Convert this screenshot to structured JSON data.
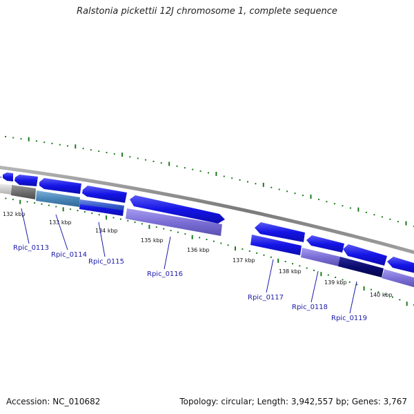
{
  "header": {
    "title": "Ralstonia pickettii 12J chromosome 1, complete sequence"
  },
  "footer": {
    "accession": "Accession: NC_010682",
    "summary": "Topology: circular; Length: 3,942,557 bp; Genes: 3,767"
  },
  "ticks": [
    {
      "label": "132 kbp"
    },
    {
      "label": "133 kbp"
    },
    {
      "label": "134 kbp"
    },
    {
      "label": "135 kbp"
    },
    {
      "label": "136 kbp"
    },
    {
      "label": "137 kbp"
    },
    {
      "label": "138 kbp"
    },
    {
      "label": "139 kbp"
    },
    {
      "label": "140 kbp"
    }
  ],
  "genes": [
    {
      "label": "Rpic_0113"
    },
    {
      "label": "Rpic_0114"
    },
    {
      "label": "Rpic_0115"
    },
    {
      "label": "Rpic_0116"
    },
    {
      "label": "Rpic_0117"
    },
    {
      "label": "Rpic_0118"
    },
    {
      "label": "Rpic_0119"
    }
  ],
  "colors": {
    "forward_feature": "#1414e6",
    "reverse_feature": "#1414e6",
    "orf_purple": "#7b6fd6",
    "dark_navy": "#0a0a6e",
    "steel_blue": "#4a86b8",
    "gray_feature": "#6e6e6e",
    "light_gray": "#cfcfcf",
    "backbone": "#8a8a8a",
    "tick_green": "#1a7a1a"
  }
}
